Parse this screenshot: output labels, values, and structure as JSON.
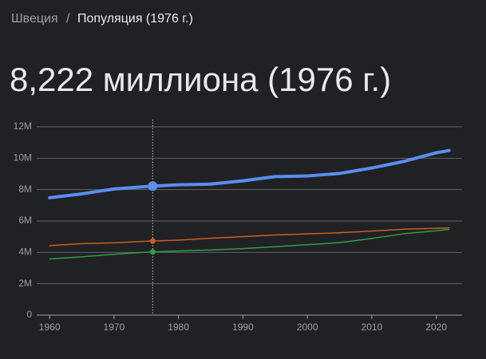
{
  "breadcrumb": {
    "parent": "Швеция",
    "separator": "/",
    "current": "Популяция (1976 г.)"
  },
  "headline": "8,222 миллиона (1976 г.)",
  "chart_data": {
    "type": "line",
    "x": [
      1960,
      1965,
      1970,
      1975,
      1976,
      1980,
      1985,
      1990,
      1995,
      2000,
      2005,
      2010,
      2015,
      2020,
      2022
    ],
    "series": [
      {
        "color": "#5a8ef0",
        "values": [
          7480000,
          7730000,
          8040000,
          8190000,
          8222000,
          8310000,
          8350000,
          8560000,
          8830000,
          8870000,
          9030000,
          9380000,
          9800000,
          10350000,
          10490000
        ]
      },
      {
        "color": "#c8601e",
        "values": [
          4430000,
          4560000,
          4610000,
          4710000,
          4720000,
          4780000,
          4900000,
          5000000,
          5110000,
          5180000,
          5250000,
          5360000,
          5480000,
          5530000,
          5560000
        ]
      },
      {
        "color": "#2e9e4a",
        "values": [
          3580000,
          3720000,
          3880000,
          4010000,
          4030000,
          4090000,
          4150000,
          4240000,
          4360000,
          4490000,
          4620000,
          4890000,
          5190000,
          5380000,
          5460000
        ]
      }
    ],
    "highlight_x": 1976,
    "xlim": [
      1958,
      2024
    ],
    "xticks": [
      1960,
      1970,
      1980,
      1990,
      2000,
      2010,
      2020
    ],
    "ylim": [
      0,
      12000000
    ],
    "yticks": [
      0,
      {
        "value": 2000000,
        "label": "2M"
      },
      {
        "value": 4000000,
        "label": "4M"
      },
      {
        "value": 6000000,
        "label": "6M"
      },
      {
        "value": 8000000,
        "label": "8M"
      },
      {
        "value": 10000000,
        "label": "10M"
      },
      {
        "value": 12000000,
        "label": "12M"
      }
    ],
    "grid": true
  }
}
